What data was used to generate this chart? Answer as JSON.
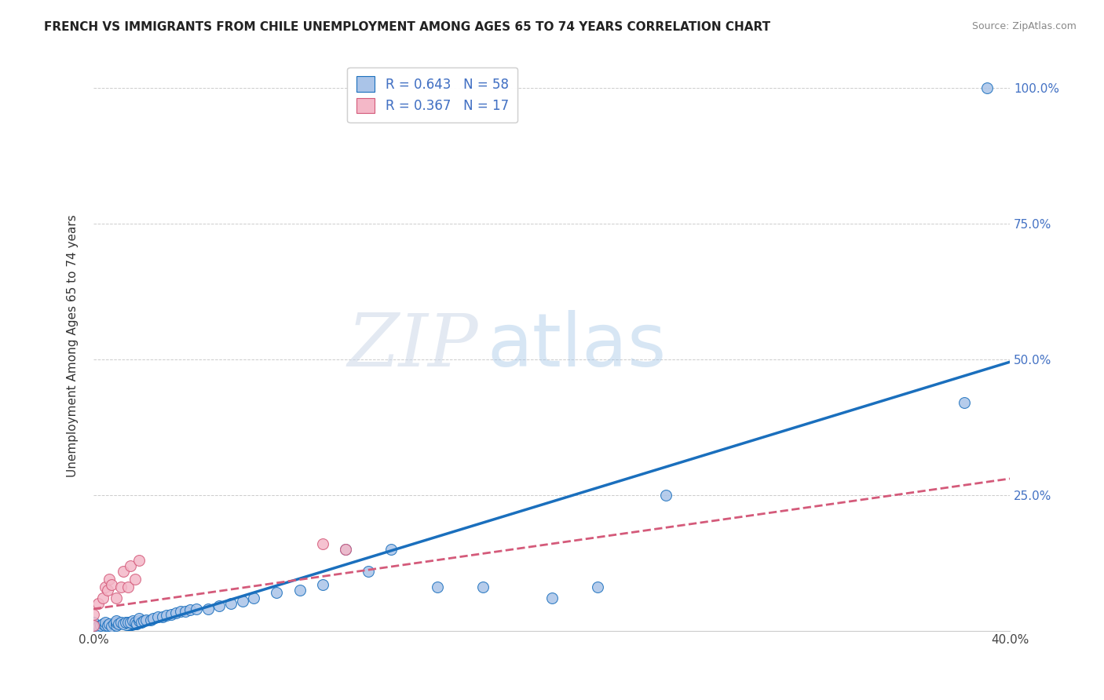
{
  "title": "FRENCH VS IMMIGRANTS FROM CHILE UNEMPLOYMENT AMONG AGES 65 TO 74 YEARS CORRELATION CHART",
  "source": "Source: ZipAtlas.com",
  "ylabel": "Unemployment Among Ages 65 to 74 years",
  "xmin": 0.0,
  "xmax": 0.4,
  "ymin": 0.0,
  "ymax": 1.05,
  "french_R": 0.643,
  "french_N": 58,
  "chile_R": 0.367,
  "chile_N": 17,
  "french_color": "#aac4e8",
  "french_line_color": "#1a6fbd",
  "chile_color": "#f4b8c8",
  "chile_line_color": "#d45a7a",
  "french_scatter_x": [
    0.0,
    0.0,
    0.0,
    0.002,
    0.003,
    0.004,
    0.005,
    0.005,
    0.006,
    0.007,
    0.008,
    0.009,
    0.01,
    0.01,
    0.01,
    0.011,
    0.012,
    0.013,
    0.014,
    0.015,
    0.016,
    0.017,
    0.018,
    0.019,
    0.02,
    0.02,
    0.021,
    0.022,
    0.023,
    0.025,
    0.026,
    0.028,
    0.03,
    0.032,
    0.034,
    0.036,
    0.038,
    0.04,
    0.042,
    0.045,
    0.05,
    0.055,
    0.06,
    0.065,
    0.07,
    0.08,
    0.09,
    0.1,
    0.11,
    0.12,
    0.13,
    0.15,
    0.17,
    0.2,
    0.22,
    0.25,
    0.38,
    0.39
  ],
  "french_scatter_y": [
    0.005,
    0.01,
    0.015,
    0.008,
    0.01,
    0.012,
    0.01,
    0.015,
    0.01,
    0.012,
    0.008,
    0.012,
    0.01,
    0.015,
    0.018,
    0.012,
    0.015,
    0.012,
    0.015,
    0.015,
    0.015,
    0.018,
    0.015,
    0.012,
    0.018,
    0.022,
    0.015,
    0.018,
    0.02,
    0.02,
    0.022,
    0.025,
    0.025,
    0.028,
    0.03,
    0.032,
    0.035,
    0.035,
    0.038,
    0.04,
    0.04,
    0.045,
    0.05,
    0.055,
    0.06,
    0.07,
    0.075,
    0.085,
    0.15,
    0.11,
    0.15,
    0.08,
    0.08,
    0.06,
    0.08,
    0.25,
    0.42,
    1.0
  ],
  "chile_scatter_x": [
    0.0,
    0.0,
    0.002,
    0.004,
    0.005,
    0.006,
    0.007,
    0.008,
    0.01,
    0.012,
    0.013,
    0.015,
    0.016,
    0.018,
    0.02,
    0.1,
    0.11
  ],
  "chile_scatter_y": [
    0.01,
    0.03,
    0.05,
    0.06,
    0.08,
    0.075,
    0.095,
    0.085,
    0.06,
    0.08,
    0.11,
    0.08,
    0.12,
    0.095,
    0.13,
    0.16,
    0.15
  ],
  "french_line_x0": 0.0,
  "french_line_x1": 0.4,
  "french_line_y0": -0.02,
  "french_line_y1": 0.495,
  "chile_line_x0": 0.0,
  "chile_line_x1": 0.4,
  "chile_line_y0": 0.04,
  "chile_line_y1": 0.28,
  "watermark_zip": "ZIP",
  "watermark_atlas": "atlas",
  "background_color": "#ffffff"
}
